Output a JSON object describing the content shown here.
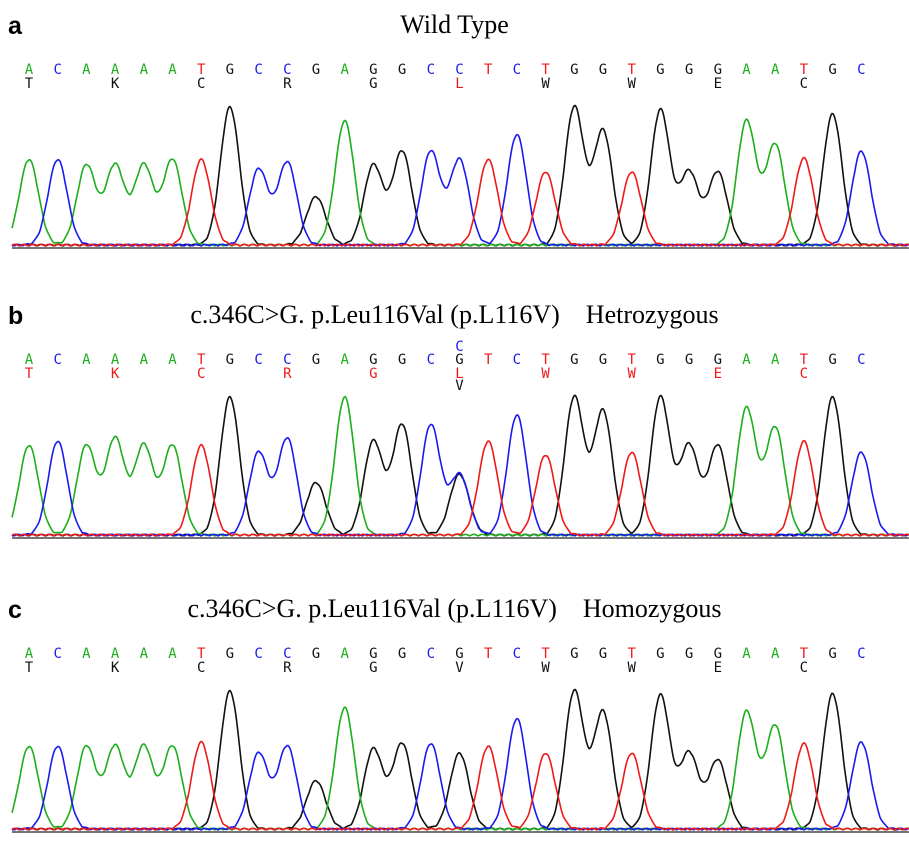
{
  "colors": {
    "A": "#1cae1c",
    "C": "#1a1aee",
    "G": "#111111",
    "T": "#ee1a1a"
  },
  "chart_data": [
    {
      "type": "line",
      "panel": "a",
      "title": "Wild Type",
      "bases": [
        "A",
        "C",
        "A",
        "A",
        "A",
        "A",
        "T",
        "G",
        "C",
        "C",
        "G",
        "A",
        "G",
        "G",
        "C",
        "C",
        "T",
        "C",
        "T",
        "G",
        "G",
        "T",
        "G",
        "G",
        "G",
        "A",
        "A",
        "T",
        "G",
        "C"
      ],
      "amino_acids": [
        {
          "index": 0,
          "label": "T",
          "color": "#111111"
        },
        {
          "index": 3,
          "label": "K",
          "color": "#111111"
        },
        {
          "index": 6,
          "label": "C",
          "color": "#111111"
        },
        {
          "index": 9,
          "label": "R",
          "color": "#111111"
        },
        {
          "index": 12,
          "label": "G",
          "color": "#111111"
        },
        {
          "index": 15,
          "label": "L",
          "color": "#ee1a1a"
        },
        {
          "index": 18,
          "label": "W",
          "color": "#111111"
        },
        {
          "index": 21,
          "label": "W",
          "color": "#111111"
        },
        {
          "index": 24,
          "label": "E",
          "color": "#111111"
        },
        {
          "index": 27,
          "label": "C",
          "color": "#111111"
        }
      ],
      "peaks": [
        0.62,
        0.62,
        0.58,
        0.58,
        0.58,
        0.62,
        0.62,
        1.0,
        0.55,
        0.6,
        0.35,
        0.9,
        0.58,
        0.68,
        0.68,
        0.62,
        0.62,
        0.8,
        0.53,
        1.0,
        0.83,
        0.53,
        0.98,
        0.53,
        0.53,
        0.9,
        0.73,
        0.63,
        0.95,
        0.68
      ],
      "secondary": []
    },
    {
      "type": "line",
      "panel": "b",
      "title": "c.346C>G. p.Leu116Val (p.L116V)    Hetrozygous",
      "bases": [
        "A",
        "C",
        "A",
        "A",
        "A",
        "A",
        "T",
        "G",
        "C",
        "C",
        "G",
        "A",
        "G",
        "G",
        "C",
        "G",
        "T",
        "C",
        "T",
        "G",
        "G",
        "T",
        "G",
        "G",
        "G",
        "A",
        "A",
        "T",
        "G",
        "C"
      ],
      "extra_call": {
        "index": 15,
        "label": "C",
        "color": "#1a1aee"
      },
      "amino_acids": [
        {
          "index": 0,
          "label": "T",
          "color": "#ee1a1a"
        },
        {
          "index": 3,
          "label": "K",
          "color": "#ee1a1a"
        },
        {
          "index": 6,
          "label": "C",
          "color": "#ee1a1a"
        },
        {
          "index": 9,
          "label": "R",
          "color": "#ee1a1a"
        },
        {
          "index": 12,
          "label": "G",
          "color": "#ee1a1a"
        },
        {
          "index": 15,
          "label": "L",
          "color": "#ee1a1a"
        },
        {
          "index": 18,
          "label": "W",
          "color": "#ee1a1a"
        },
        {
          "index": 21,
          "label": "W",
          "color": "#ee1a1a"
        },
        {
          "index": 24,
          "label": "E",
          "color": "#ee1a1a"
        },
        {
          "index": 27,
          "label": "C",
          "color": "#ee1a1a"
        }
      ],
      "extra_amino_acid": {
        "index": 15,
        "label": "V",
        "color": "#111111"
      },
      "peaks": [
        0.65,
        0.68,
        0.65,
        0.7,
        0.65,
        0.65,
        0.65,
        1.0,
        0.6,
        0.7,
        0.38,
        1.0,
        0.68,
        0.8,
        0.8,
        0.44,
        0.68,
        0.87,
        0.58,
        1.0,
        0.9,
        0.6,
        1.0,
        0.65,
        0.65,
        0.92,
        0.78,
        0.68,
        1.0,
        0.6
      ],
      "secondary": [
        {
          "index": 15,
          "base": "C",
          "height": 0.44
        }
      ]
    },
    {
      "type": "line",
      "panel": "c",
      "title": "c.346C>G. p.Leu116Val (p.L116V)    Homozygous",
      "bases": [
        "A",
        "C",
        "A",
        "A",
        "A",
        "A",
        "T",
        "G",
        "C",
        "C",
        "G",
        "A",
        "G",
        "G",
        "C",
        "G",
        "T",
        "C",
        "T",
        "G",
        "G",
        "T",
        "G",
        "G",
        "G",
        "A",
        "A",
        "T",
        "G",
        "C"
      ],
      "amino_acids": [
        {
          "index": 0,
          "label": "T",
          "color": "#111111"
        },
        {
          "index": 3,
          "label": "K",
          "color": "#111111"
        },
        {
          "index": 6,
          "label": "C",
          "color": "#111111"
        },
        {
          "index": 9,
          "label": "R",
          "color": "#111111"
        },
        {
          "index": 12,
          "label": "G",
          "color": "#111111"
        },
        {
          "index": 15,
          "label": "V",
          "color": "#111111"
        },
        {
          "index": 18,
          "label": "W",
          "color": "#111111"
        },
        {
          "index": 21,
          "label": "W",
          "color": "#111111"
        },
        {
          "index": 24,
          "label": "E",
          "color": "#111111"
        },
        {
          "index": 27,
          "label": "C",
          "color": "#111111"
        }
      ],
      "peaks": [
        0.6,
        0.6,
        0.6,
        0.6,
        0.6,
        0.6,
        0.63,
        1.0,
        0.55,
        0.6,
        0.35,
        0.88,
        0.58,
        0.62,
        0.62,
        0.55,
        0.6,
        0.8,
        0.55,
        1.0,
        0.85,
        0.55,
        0.97,
        0.55,
        0.5,
        0.85,
        0.75,
        0.62,
        0.98,
        0.63
      ],
      "secondary": []
    }
  ]
}
